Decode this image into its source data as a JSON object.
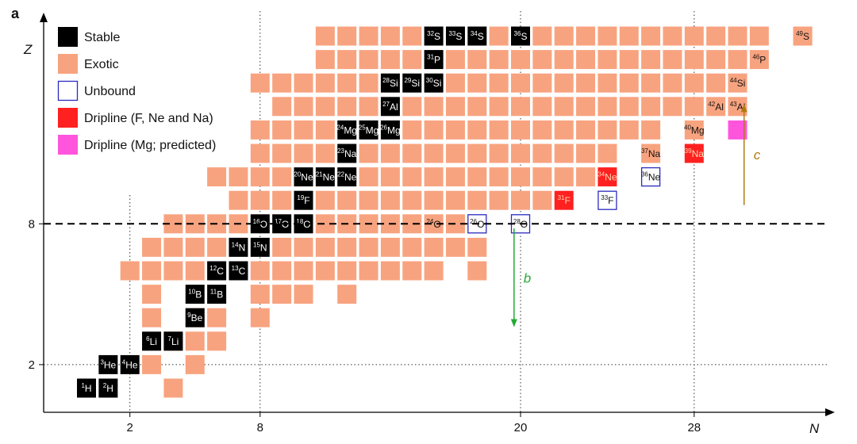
{
  "panel_label": "a",
  "chart_data": {
    "type": "heatmap",
    "xlabel": "N",
    "ylabel": "Z",
    "x_ticks": [
      2,
      8,
      20,
      28
    ],
    "y_ticks": [
      2,
      8
    ],
    "magic_number_line": 8,
    "colors": {
      "stable": "#000000",
      "exotic": "#f8a37f",
      "unbound_border": "#2b2bbf",
      "dripline": "#ff2020",
      "dripline_predicted": "#ff55dd",
      "arrow_b": "#22aa33",
      "arrow_c": "#b07a10"
    },
    "legend": [
      {
        "kind": "stable",
        "label": "Stable"
      },
      {
        "kind": "exotic",
        "label": "Exotic"
      },
      {
        "kind": "unbound",
        "label": "Unbound"
      },
      {
        "kind": "dripline",
        "label": "Dripline (F, Ne and Na)"
      },
      {
        "kind": "dripline_predicted",
        "label": "Dripline (Mg; predicted)"
      }
    ],
    "annotations": [
      {
        "text": "b",
        "from": [
          19.7,
          7.8
        ],
        "to": [
          19.7,
          3.6
        ]
      },
      {
        "text": "c",
        "from": [
          30.3,
          8.8
        ],
        "to": [
          30.3,
          13.1
        ]
      }
    ],
    "rows": [
      {
        "Z": 1,
        "exotic": [
          [
            4,
            4
          ]
        ],
        "stable": [
          [
            0,
            "1",
            "H"
          ],
          [
            1,
            "2",
            "H"
          ]
        ]
      },
      {
        "Z": 2,
        "exotic": [
          [
            3,
            3
          ],
          [
            5,
            5
          ]
        ],
        "stable": [
          [
            1,
            "3",
            "He"
          ],
          [
            2,
            "4",
            "He"
          ]
        ]
      },
      {
        "Z": 3,
        "exotic": [
          [
            4,
            6
          ]
        ],
        "stable": [
          [
            3,
            "6",
            "Li"
          ],
          [
            4,
            "7",
            "Li"
          ]
        ]
      },
      {
        "Z": 4,
        "exotic": [
          [
            3,
            3
          ],
          [
            5,
            6
          ],
          [
            8,
            8
          ]
        ],
        "stable": [
          [
            5,
            "9",
            "Be"
          ]
        ]
      },
      {
        "Z": 5,
        "exotic": [
          [
            3,
            3
          ],
          [
            8,
            10
          ],
          [
            12,
            12
          ]
        ],
        "stable": [
          [
            5,
            "10",
            "B"
          ],
          [
            6,
            "11",
            "B"
          ]
        ]
      },
      {
        "Z": 6,
        "exotic": [
          [
            2,
            5
          ],
          [
            8,
            16
          ],
          [
            18,
            18
          ]
        ],
        "stable": [
          [
            6,
            "12",
            "C"
          ],
          [
            7,
            "13",
            "C"
          ]
        ]
      },
      {
        "Z": 7,
        "exotic": [
          [
            3,
            6
          ],
          [
            9,
            18
          ]
        ],
        "stable": [
          [
            7,
            "14",
            "N"
          ],
          [
            8,
            "15",
            "N"
          ]
        ]
      },
      {
        "Z": 8,
        "exotic": [
          [
            4,
            7
          ],
          [
            11,
            15
          ],
          [
            17,
            17
          ]
        ],
        "stable": [
          [
            8,
            "16",
            "O"
          ],
          [
            9,
            "17",
            "O"
          ],
          [
            10,
            "18",
            "O"
          ]
        ],
        "labeled_exotic": [
          [
            16,
            "24",
            "O"
          ]
        ],
        "unbound": [
          [
            18,
            "26",
            "O"
          ],
          [
            20,
            "28",
            "O"
          ]
        ]
      },
      {
        "Z": 9,
        "exotic": [
          [
            7,
            9
          ],
          [
            11,
            19
          ],
          [
            20,
            21
          ]
        ],
        "stable": [
          [
            10,
            "19",
            "F"
          ]
        ],
        "dripline": [
          [
            22,
            "31",
            "F"
          ]
        ],
        "unbound": [
          [
            24,
            "33",
            "F"
          ]
        ]
      },
      {
        "Z": 10,
        "exotic": [
          [
            6,
            9
          ],
          [
            13,
            23
          ]
        ],
        "stable": [
          [
            10,
            "20",
            "Ne"
          ],
          [
            11,
            "21",
            "Ne"
          ],
          [
            12,
            "22",
            "Ne"
          ]
        ],
        "dripline": [
          [
            24,
            "34",
            "Ne"
          ]
        ],
        "unbound": [
          [
            26,
            "36",
            "Ne"
          ]
        ]
      },
      {
        "Z": 11,
        "exotic": [
          [
            8,
            11
          ],
          [
            13,
            24
          ]
        ],
        "stable": [
          [
            12,
            "23",
            "Na"
          ]
        ],
        "labeled_exotic": [
          [
            26,
            "37",
            "Na"
          ]
        ],
        "dripline": [
          [
            28,
            "39",
            "Na"
          ]
        ]
      },
      {
        "Z": 12,
        "exotic": [
          [
            8,
            11
          ],
          [
            15,
            26
          ]
        ],
        "stable": [
          [
            12,
            "24",
            "Mg"
          ],
          [
            13,
            "25",
            "Mg"
          ],
          [
            14,
            "26",
            "Mg"
          ]
        ],
        "labeled_exotic": [
          [
            28,
            "40",
            "Mg"
          ]
        ],
        "predicted": [
          [
            30,
            "",
            ""
          ]
        ]
      },
      {
        "Z": 13,
        "exotic": [
          [
            9,
            13
          ],
          [
            15,
            28
          ]
        ],
        "stable": [
          [
            14,
            "27",
            "Al"
          ]
        ],
        "labeled_exotic": [
          [
            29,
            "42",
            "Al"
          ],
          [
            30,
            "43",
            "Al"
          ]
        ]
      },
      {
        "Z": 14,
        "exotic": [
          [
            8,
            13
          ],
          [
            17,
            29
          ]
        ],
        "stable": [
          [
            14,
            "28",
            "Si"
          ],
          [
            15,
            "29",
            "Si"
          ],
          [
            16,
            "30",
            "Si"
          ]
        ],
        "labeled_exotic": [
          [
            30,
            "44",
            "Si"
          ]
        ]
      },
      {
        "Z": 15,
        "exotic": [
          [
            11,
            15
          ],
          [
            17,
            30
          ]
        ],
        "stable": [
          [
            16,
            "31",
            "P"
          ]
        ],
        "labeled_exotic": [
          [
            31,
            "46",
            "P"
          ]
        ]
      },
      {
        "Z": 16,
        "exotic": [
          [
            11,
            15
          ],
          [
            19,
            19
          ],
          [
            21,
            31
          ],
          [
            33,
            33
          ]
        ],
        "stable": [
          [
            16,
            "32",
            "S"
          ],
          [
            17,
            "33",
            "S"
          ],
          [
            18,
            "34",
            "S"
          ],
          [
            20,
            "36",
            "S"
          ]
        ],
        "labeled_exotic": [
          [
            33,
            "49",
            "S"
          ]
        ]
      }
    ]
  }
}
